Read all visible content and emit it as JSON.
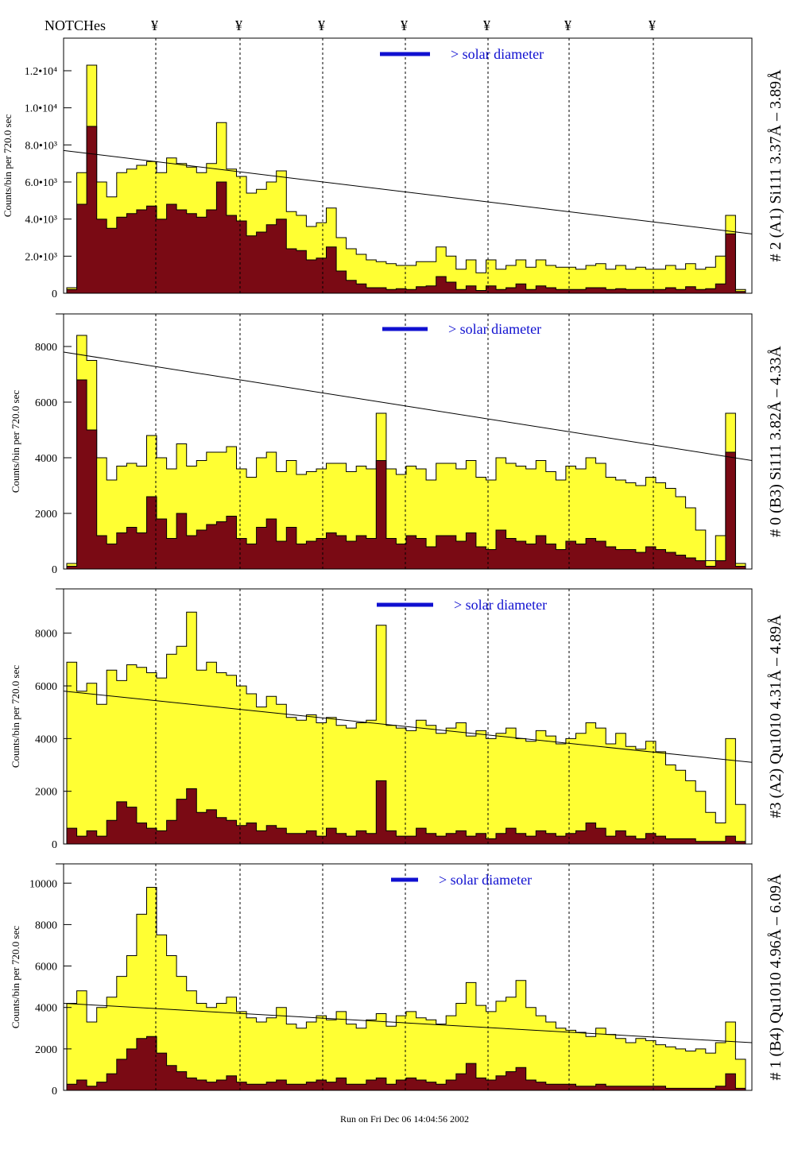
{
  "header": {
    "notches_label": "NOTCHes",
    "notch_symbol": "¥",
    "notch_count": 7
  },
  "footer": {
    "run_stamp": "Run on Fri Dec 06 14:04:56 2002"
  },
  "colors": {
    "fill_total": "#ffff33",
    "fill_sub": "#7a0a14",
    "scale_bar": "#1010d0",
    "outline": "#000000"
  },
  "chart_data": [
    {
      "type": "area",
      "panel_label": "# 2 (A1) Si111  3.37Å – 3.89Å",
      "ylabel": "Counts/bin per   720.0 sec",
      "scale_label": "> solar diameter",
      "ylim": [
        0,
        13500
      ],
      "yticks": [
        0,
        2000,
        4000,
        6000,
        8000,
        10000,
        12000
      ],
      "ytick_labels": [
        "0",
        "2.0•10³",
        "4.0•10³",
        "6.0•10³",
        "8.0•10³",
        "1.0•10⁴",
        "1.2•10⁴"
      ],
      "trend_line": [
        7700,
        3200
      ],
      "series": [
        {
          "values": [
            300,
            6500,
            12300,
            6000,
            5200,
            6500,
            6700,
            6900,
            7100,
            6500,
            7300,
            7000,
            6800,
            6500,
            7000,
            9200,
            6700,
            6300,
            5400,
            5600,
            6000,
            6600,
            4400,
            4200,
            3600,
            3800,
            4600,
            3000,
            2400,
            2100,
            1800,
            1700,
            1600,
            1500,
            1500,
            1700,
            1700,
            2500,
            2000,
            1300,
            1800,
            1100,
            1800,
            1300,
            1500,
            1800,
            1400,
            1800,
            1500,
            1400,
            1400,
            1300,
            1500,
            1600,
            1300,
            1500,
            1300,
            1400,
            1300,
            1300,
            1500,
            1300,
            1600,
            1300,
            1400,
            2000,
            4200,
            200
          ]
        },
        {
          "values": [
            200,
            4800,
            9000,
            4000,
            3500,
            4100,
            4300,
            4500,
            4700,
            4000,
            4800,
            4500,
            4300,
            4100,
            4500,
            6000,
            4200,
            3900,
            3100,
            3300,
            3700,
            4000,
            2400,
            2300,
            1800,
            1900,
            2500,
            1200,
            700,
            500,
            300,
            300,
            200,
            250,
            200,
            350,
            400,
            900,
            600,
            200,
            400,
            150,
            400,
            200,
            300,
            500,
            200,
            400,
            300,
            200,
            200,
            200,
            300,
            300,
            200,
            250,
            200,
            200,
            200,
            200,
            300,
            200,
            350,
            200,
            250,
            500,
            3200,
            100
          ]
        }
      ]
    },
    {
      "type": "area",
      "panel_label": "# 0 (B3) Si111  3.82Å – 4.33Å",
      "ylabel": "Counts/bin per   720.0 sec",
      "scale_label": "> solar diameter",
      "ylim": [
        0,
        9000
      ],
      "yticks": [
        0,
        2000,
        4000,
        6000,
        8000
      ],
      "ytick_labels": [
        "0",
        "2000",
        "4000",
        "6000",
        "8000"
      ],
      "trend_line": [
        7800,
        3900
      ],
      "series": [
        {
          "values": [
            200,
            8400,
            7500,
            4000,
            3200,
            3700,
            3800,
            3700,
            4800,
            4000,
            3600,
            4500,
            3700,
            3900,
            4200,
            4200,
            4400,
            3600,
            3300,
            4000,
            4200,
            3500,
            3900,
            3400,
            3500,
            3600,
            3800,
            3800,
            3500,
            3700,
            3600,
            5600,
            3600,
            3400,
            3700,
            3600,
            3200,
            3800,
            3800,
            3600,
            3900,
            3300,
            3200,
            4000,
            3800,
            3700,
            3600,
            3900,
            3500,
            3200,
            3700,
            3600,
            4000,
            3800,
            3300,
            3200,
            3100,
            3000,
            3300,
            3100,
            2900,
            2600,
            2200,
            1400,
            300,
            1200,
            5600,
            200
          ]
        },
        {
          "values": [
            100,
            6800,
            5000,
            1200,
            900,
            1300,
            1500,
            1300,
            2600,
            1800,
            1100,
            2000,
            1200,
            1400,
            1600,
            1700,
            1900,
            1100,
            900,
            1500,
            1800,
            1000,
            1500,
            900,
            1000,
            1100,
            1300,
            1200,
            1000,
            1200,
            1100,
            3900,
            1100,
            900,
            1200,
            1100,
            800,
            1200,
            1200,
            1000,
            1300,
            800,
            700,
            1400,
            1100,
            1000,
            900,
            1200,
            900,
            700,
            1000,
            900,
            1100,
            1000,
            800,
            700,
            700,
            600,
            800,
            700,
            600,
            500,
            400,
            300,
            100,
            300,
            4200,
            100
          ]
        }
      ]
    },
    {
      "type": "area",
      "panel_label": "#3 (A2) Qu1010  4.31Å – 4.89Å",
      "ylabel": "Counts/bin per   720.0 sec",
      "scale_label": "> solar diameter",
      "ylim": [
        0,
        9500
      ],
      "yticks": [
        0,
        2000,
        4000,
        6000,
        8000
      ],
      "ytick_labels": [
        "0",
        "2000",
        "4000",
        "6000",
        "8000"
      ],
      "trend_line": [
        5800,
        3100
      ],
      "series": [
        {
          "values": [
            6900,
            5800,
            6100,
            5300,
            6600,
            6200,
            6800,
            6700,
            6500,
            6300,
            7200,
            7500,
            8800,
            6600,
            6900,
            6500,
            6400,
            6000,
            5700,
            5200,
            5600,
            5300,
            4800,
            4700,
            4900,
            4600,
            4800,
            4500,
            4400,
            4600,
            4700,
            8300,
            4500,
            4400,
            4300,
            4700,
            4500,
            4200,
            4400,
            4600,
            4100,
            4300,
            4000,
            4200,
            4400,
            4000,
            3900,
            4300,
            4100,
            3800,
            4000,
            4200,
            4600,
            4400,
            3800,
            4200,
            3700,
            3600,
            3900,
            3500,
            3000,
            2800,
            2400,
            2000,
            1200,
            800,
            4000,
            1500
          ]
        },
        {
          "values": [
            600,
            300,
            500,
            300,
            900,
            1600,
            1400,
            800,
            600,
            500,
            900,
            1700,
            2100,
            1200,
            1300,
            1000,
            900,
            700,
            800,
            500,
            700,
            600,
            400,
            400,
            500,
            300,
            600,
            400,
            300,
            500,
            400,
            2400,
            500,
            300,
            300,
            600,
            400,
            300,
            400,
            500,
            300,
            400,
            200,
            400,
            600,
            400,
            300,
            500,
            400,
            300,
            400,
            500,
            800,
            600,
            300,
            500,
            300,
            200,
            400,
            300,
            200,
            200,
            200,
            100,
            100,
            100,
            300,
            100
          ]
        }
      ]
    },
    {
      "type": "area",
      "panel_label": "# 1 (B4) Qu1010 4.96Å – 6.09Å",
      "ylabel": "Counts/bin per   720.0 sec",
      "scale_label": "> solar diameter",
      "ylim": [
        0,
        10700
      ],
      "yticks": [
        0,
        2000,
        4000,
        6000,
        8000,
        10000
      ],
      "ytick_labels": [
        "0",
        "2000",
        "4000",
        "6000",
        "8000",
        "10000"
      ],
      "trend_line": [
        4200,
        2300
      ],
      "series": [
        {
          "values": [
            4200,
            4800,
            3300,
            4000,
            4500,
            5500,
            6500,
            8500,
            9800,
            7500,
            6500,
            5500,
            4800,
            4200,
            4000,
            4200,
            4500,
            3800,
            3500,
            3300,
            3500,
            4000,
            3200,
            3000,
            3300,
            3600,
            3400,
            3800,
            3200,
            3000,
            3400,
            3700,
            3100,
            3600,
            3800,
            3500,
            3400,
            3200,
            3600,
            4200,
            5200,
            4100,
            3800,
            4300,
            4500,
            5300,
            4000,
            3600,
            3300,
            3000,
            2900,
            2800,
            2600,
            3000,
            2700,
            2500,
            2300,
            2500,
            2400,
            2200,
            2100,
            2000,
            1900,
            2000,
            1800,
            2300,
            3300,
            1500
          ]
        },
        {
          "values": [
            300,
            500,
            200,
            400,
            800,
            1500,
            2000,
            2500,
            2600,
            1800,
            1200,
            900,
            600,
            500,
            400,
            500,
            700,
            400,
            300,
            300,
            400,
            500,
            300,
            300,
            400,
            500,
            400,
            600,
            300,
            300,
            500,
            600,
            300,
            500,
            600,
            500,
            400,
            300,
            500,
            800,
            1300,
            600,
            500,
            700,
            900,
            1100,
            500,
            400,
            300,
            300,
            300,
            200,
            200,
            300,
            200,
            200,
            200,
            200,
            200,
            200,
            100,
            100,
            100,
            100,
            100,
            200,
            800,
            100
          ]
        }
      ]
    }
  ]
}
